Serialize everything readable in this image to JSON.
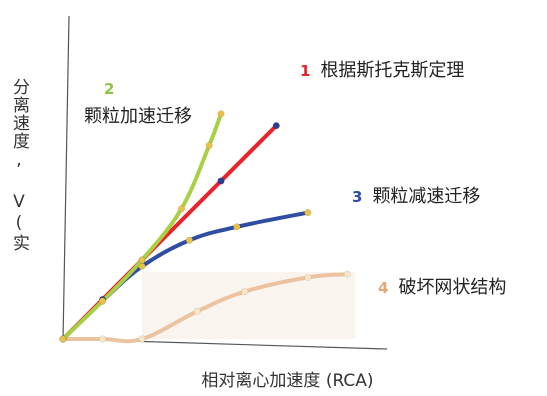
{
  "chart_data": {
    "type": "line",
    "xlabel": "相对离心加速度 (RCA)",
    "ylabel": "分离速度, V(实验)",
    "series": [
      {
        "id": "1",
        "name": "根据斯托克斯定理",
        "color": "#e8232b",
        "marker_color": "#2f3d8f",
        "x": [
          0,
          0.5,
          1.0,
          2.0,
          2.7
        ],
        "y": [
          0,
          0.5,
          1.0,
          2.0,
          2.7
        ]
      },
      {
        "id": "2",
        "name": "颗粒加速迁移",
        "color": "#a7d043",
        "marker_color": "#e6c24a",
        "x": [
          0,
          0.5,
          1.0,
          1.5,
          1.85,
          2.0
        ],
        "y": [
          0,
          0.48,
          1.0,
          1.65,
          2.45,
          2.85
        ]
      },
      {
        "id": "3",
        "name": "颗粒减速迁移",
        "color": "#2f4ea3",
        "marker_color": "#e6c24a",
        "x": [
          0,
          0.5,
          1.0,
          1.6,
          2.2,
          3.1
        ],
        "y": [
          0,
          0.48,
          0.92,
          1.25,
          1.42,
          1.6
        ]
      },
      {
        "id": "4",
        "name": "破坏网状结构",
        "color": "#ecc3a1",
        "marker_color": "#f6e6c8",
        "x": [
          0,
          0.5,
          1.0,
          1.7,
          2.3,
          3.1,
          3.6
        ],
        "y": [
          0,
          0,
          0,
          0.35,
          0.6,
          0.78,
          0.82
        ]
      }
    ],
    "label_colors": {
      "1": "#e8232b",
      "2": "#8cc63f",
      "3": "#2f4ea3",
      "4": "#e0a77a"
    },
    "xlim": [
      0,
      4
    ],
    "ylim": [
      0,
      4
    ],
    "grid": false
  }
}
